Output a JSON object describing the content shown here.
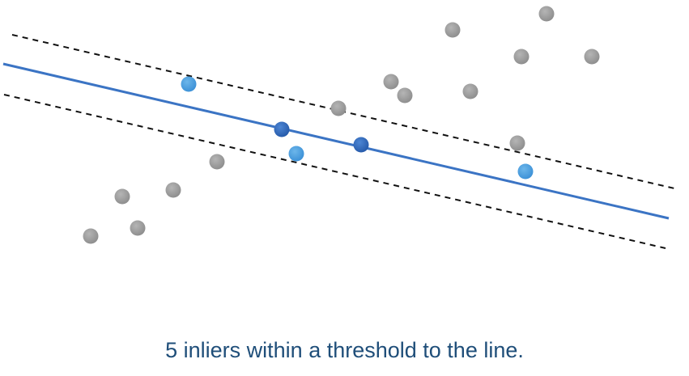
{
  "caption": "5 inliers within a threshold to the line.",
  "colors": {
    "fit_line": "#3b74c4",
    "threshold_lines": "#111111",
    "outlier": "#9b9b9b",
    "sampled_point": "#2f6cc0",
    "inlier": "#4a9fe0",
    "caption": "#1f4e79"
  },
  "line_style": {
    "fit_line": "solid",
    "threshold_lines": "dashed"
  },
  "points": [
    {
      "kind": "outlier"
    },
    {
      "kind": "outlier"
    },
    {
      "kind": "outlier"
    },
    {
      "kind": "outlier"
    },
    {
      "kind": "outlier"
    },
    {
      "kind": "outlier"
    },
    {
      "kind": "outlier"
    },
    {
      "kind": "outlier"
    },
    {
      "kind": "outlier"
    },
    {
      "kind": "outlier"
    },
    {
      "kind": "outlier"
    },
    {
      "kind": "outlier"
    },
    {
      "kind": "outlier"
    },
    {
      "kind": "outlier"
    },
    {
      "kind": "outlier"
    },
    {
      "kind": "outlier"
    },
    {
      "kind": "inlier"
    },
    {
      "kind": "inlier"
    },
    {
      "kind": "inlier"
    },
    {
      "kind": "sampled"
    },
    {
      "kind": "sampled"
    }
  ]
}
